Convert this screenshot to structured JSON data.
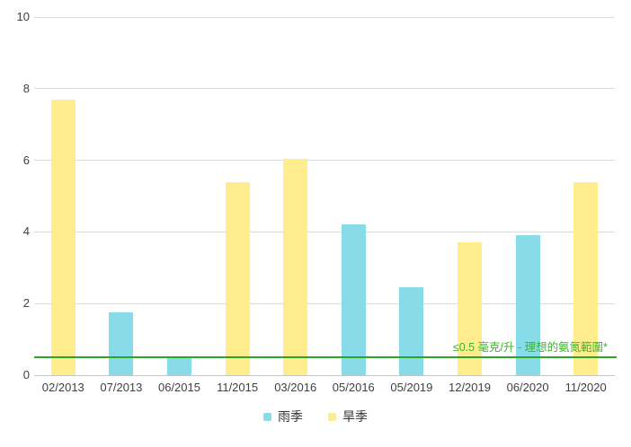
{
  "chart_data": {
    "type": "bar",
    "title": "",
    "xlabel": "",
    "ylabel": "",
    "categories": [
      "02/2013",
      "07/2013",
      "06/2015",
      "11/2015",
      "03/2016",
      "05/2016",
      "05/2019",
      "12/2019",
      "06/2020",
      "11/2020"
    ],
    "series": [
      {
        "name": "雨季",
        "color": "#87dce8",
        "values": [
          null,
          1.75,
          0.5,
          null,
          null,
          4.2,
          2.45,
          null,
          3.9,
          null
        ]
      },
      {
        "name": "旱季",
        "color": "#ffec8c",
        "values": [
          7.7,
          null,
          null,
          5.4,
          6.05,
          null,
          null,
          3.7,
          null,
          5.4
        ]
      }
    ],
    "ylim": [
      0,
      10
    ],
    "yticks": [
      0,
      2,
      4,
      6,
      8,
      10
    ],
    "grid": true,
    "legend_position": "bottom",
    "threshold": {
      "value": 0.5,
      "label": "≤0.5 毫克/升 - 理想的氨氮範圍*",
      "line_color": "#2fa42a",
      "text_color": "#3cb32a"
    }
  },
  "colors": {
    "background": "#ffffff",
    "gridline": "#dadada",
    "axis_line": "#c6c6c6",
    "tick_label": "#404040"
  }
}
